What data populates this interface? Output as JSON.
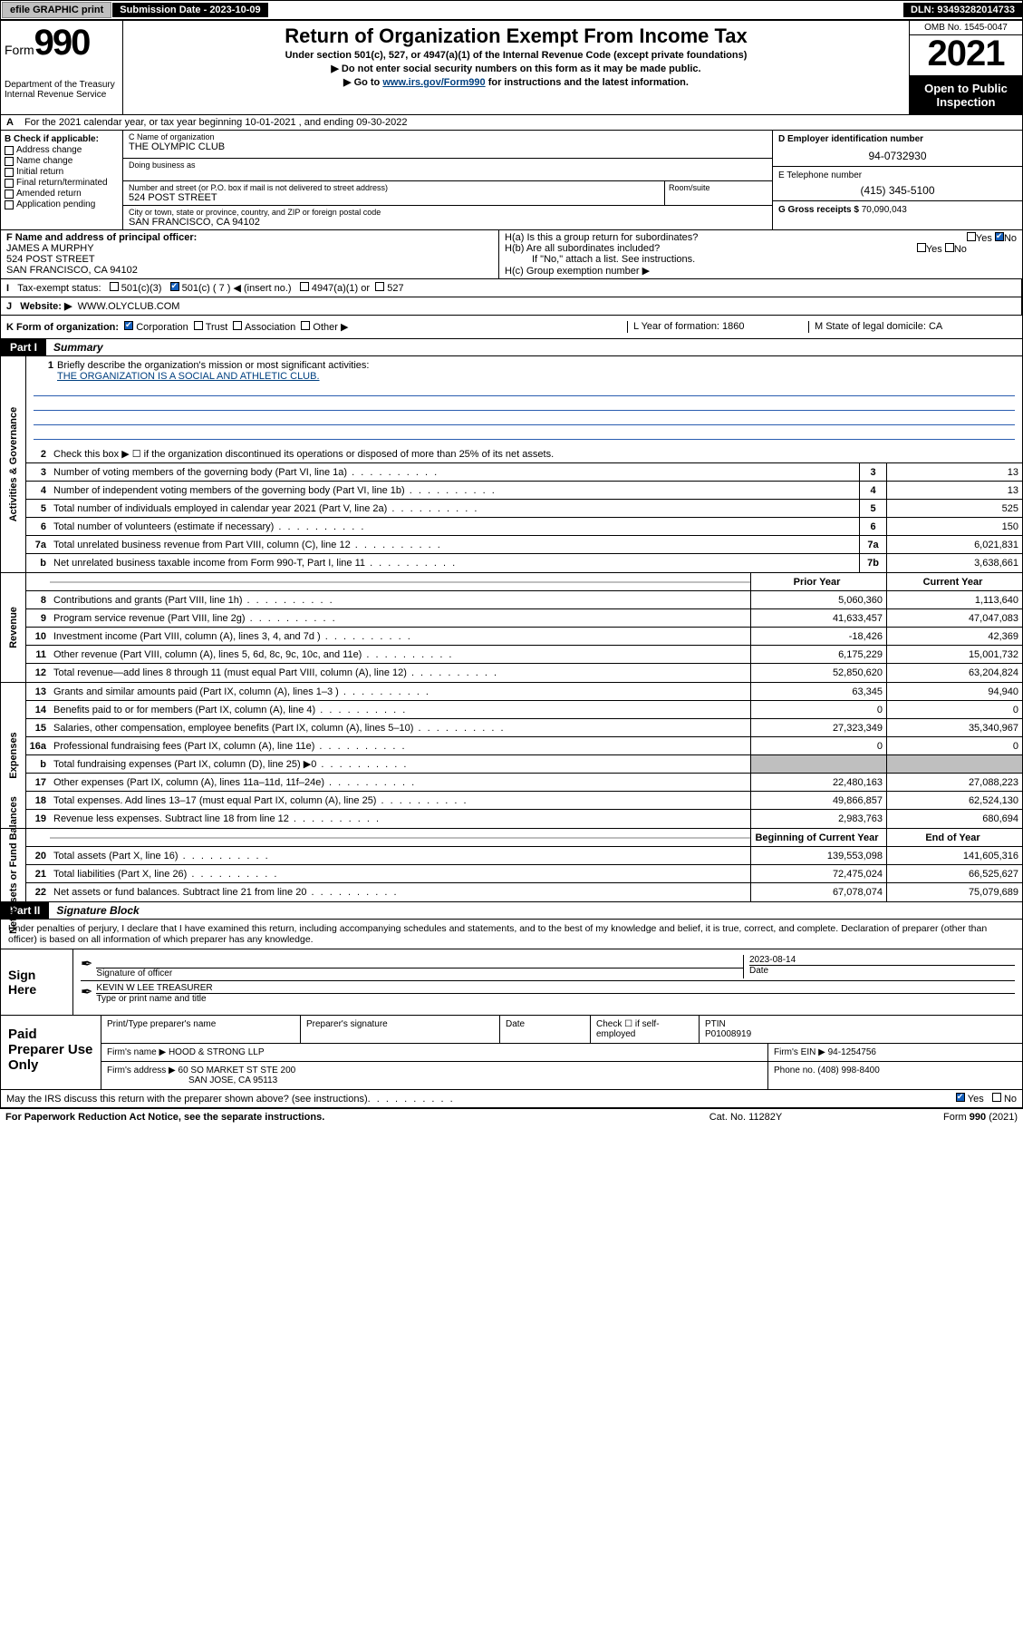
{
  "topbar": {
    "efile": "efile GRAPHIC print",
    "submission": "Submission Date - 2023-10-09",
    "dln": "DLN: 93493282014733"
  },
  "header": {
    "form_word": "Form",
    "form_num": "990",
    "title": "Return of Organization Exempt From Income Tax",
    "subtitle": "Under section 501(c), 527, or 4947(a)(1) of the Internal Revenue Code (except private foundations)",
    "warn": "▶ Do not enter social security numbers on this form as it may be made public.",
    "goto_pre": "▶ Go to ",
    "goto_link": "www.irs.gov/Form990",
    "goto_post": " for instructions and the latest information.",
    "dept": "Department of the Treasury",
    "irs": "Internal Revenue Service",
    "omb": "OMB No. 1545-0047",
    "year": "2021",
    "open": "Open to Public Inspection"
  },
  "row_a": "For the 2021 calendar year, or tax year beginning 10-01-2021   , and ending 09-30-2022",
  "col_b": {
    "title": "B Check if applicable:",
    "opts": [
      "Address change",
      "Name change",
      "Initial return",
      "Final return/terminated",
      "Amended return",
      "Application pending"
    ]
  },
  "col_c": {
    "name_lbl": "C Name of organization",
    "name": "THE OLYMPIC CLUB",
    "dba_lbl": "Doing business as",
    "addr_lbl": "Number and street (or P.O. box if mail is not delivered to street address)",
    "addr": "524 POST STREET",
    "room_lbl": "Room/suite",
    "city_lbl": "City or town, state or province, country, and ZIP or foreign postal code",
    "city": "SAN FRANCISCO, CA  94102"
  },
  "col_d": {
    "lbl": "D Employer identification number",
    "val": "94-0732930"
  },
  "col_e": {
    "lbl": "E Telephone number",
    "val": "(415) 345-5100"
  },
  "col_g": {
    "lbl": "G Gross receipts $",
    "val": "70,090,043"
  },
  "col_f": {
    "lbl": "F Name and address of principal officer:",
    "name": "JAMES A MURPHY",
    "street": "524 POST STREET",
    "city": "SAN FRANCISCO, CA  94102"
  },
  "col_h": {
    "a": "H(a)  Is this a group return for subordinates?",
    "b": "H(b)  Are all subordinates included?",
    "b_note": "If \"No,\" attach a list. See instructions.",
    "c": "H(c)  Group exemption number ▶"
  },
  "row_i": {
    "lbl": "Tax-exempt status:",
    "o1": "501(c)(3)",
    "o2": "501(c) ( 7 ) ◀ (insert no.)",
    "o3": "4947(a)(1) or",
    "o4": "527"
  },
  "row_j": {
    "lbl": "Website: ▶",
    "val": "WWW.OLYCLUB.COM"
  },
  "row_k": {
    "lbl": "K Form of organization:",
    "opts": [
      "Corporation",
      "Trust",
      "Association",
      "Other ▶"
    ],
    "l": "L Year of formation: 1860",
    "m": "M State of legal domicile: CA"
  },
  "part1": {
    "tag": "Part I",
    "title": "Summary"
  },
  "mission": {
    "num": "1",
    "lbl": "Briefly describe the organization's mission or most significant activities:",
    "text": "THE ORGANIZATION IS A SOCIAL AND ATHLETIC CLUB."
  },
  "lines_gov": [
    {
      "n": "2",
      "t": "Check this box ▶ ☐  if the organization discontinued its operations or disposed of more than 25% of its net assets."
    },
    {
      "n": "3",
      "t": "Number of voting members of the governing body (Part VI, line 1a)",
      "b": "3",
      "v": "13"
    },
    {
      "n": "4",
      "t": "Number of independent voting members of the governing body (Part VI, line 1b)",
      "b": "4",
      "v": "13"
    },
    {
      "n": "5",
      "t": "Total number of individuals employed in calendar year 2021 (Part V, line 2a)",
      "b": "5",
      "v": "525"
    },
    {
      "n": "6",
      "t": "Total number of volunteers (estimate if necessary)",
      "b": "6",
      "v": "150"
    },
    {
      "n": "7a",
      "t": "Total unrelated business revenue from Part VIII, column (C), line 12",
      "b": "7a",
      "v": "6,021,831"
    },
    {
      "n": "b",
      "t": "Net unrelated business taxable income from Form 990-T, Part I, line 11",
      "b": "7b",
      "v": "3,638,661"
    }
  ],
  "rev_hdr": {
    "py": "Prior Year",
    "cy": "Current Year"
  },
  "lines_rev": [
    {
      "n": "8",
      "t": "Contributions and grants (Part VIII, line 1h)",
      "py": "5,060,360",
      "cy": "1,113,640"
    },
    {
      "n": "9",
      "t": "Program service revenue (Part VIII, line 2g)",
      "py": "41,633,457",
      "cy": "47,047,083"
    },
    {
      "n": "10",
      "t": "Investment income (Part VIII, column (A), lines 3, 4, and 7d )",
      "py": "-18,426",
      "cy": "42,369"
    },
    {
      "n": "11",
      "t": "Other revenue (Part VIII, column (A), lines 5, 6d, 8c, 9c, 10c, and 11e)",
      "py": "6,175,229",
      "cy": "15,001,732"
    },
    {
      "n": "12",
      "t": "Total revenue—add lines 8 through 11 (must equal Part VIII, column (A), line 12)",
      "py": "52,850,620",
      "cy": "63,204,824"
    }
  ],
  "lines_exp": [
    {
      "n": "13",
      "t": "Grants and similar amounts paid (Part IX, column (A), lines 1–3 )",
      "py": "63,345",
      "cy": "94,940"
    },
    {
      "n": "14",
      "t": "Benefits paid to or for members (Part IX, column (A), line 4)",
      "py": "0",
      "cy": "0"
    },
    {
      "n": "15",
      "t": "Salaries, other compensation, employee benefits (Part IX, column (A), lines 5–10)",
      "py": "27,323,349",
      "cy": "35,340,967"
    },
    {
      "n": "16a",
      "t": "Professional fundraising fees (Part IX, column (A), line 11e)",
      "py": "0",
      "cy": "0"
    },
    {
      "n": "b",
      "t": "Total fundraising expenses (Part IX, column (D), line 25) ▶0",
      "py": "",
      "cy": "",
      "shade": true
    },
    {
      "n": "17",
      "t": "Other expenses (Part IX, column (A), lines 11a–11d, 11f–24e)",
      "py": "22,480,163",
      "cy": "27,088,223"
    },
    {
      "n": "18",
      "t": "Total expenses. Add lines 13–17 (must equal Part IX, column (A), line 25)",
      "py": "49,866,857",
      "cy": "62,524,130"
    },
    {
      "n": "19",
      "t": "Revenue less expenses. Subtract line 18 from line 12",
      "py": "2,983,763",
      "cy": "680,694"
    }
  ],
  "na_hdr": {
    "py": "Beginning of Current Year",
    "cy": "End of Year"
  },
  "lines_na": [
    {
      "n": "20",
      "t": "Total assets (Part X, line 16)",
      "py": "139,553,098",
      "cy": "141,605,316"
    },
    {
      "n": "21",
      "t": "Total liabilities (Part X, line 26)",
      "py": "72,475,024",
      "cy": "66,525,627"
    },
    {
      "n": "22",
      "t": "Net assets or fund balances. Subtract line 21 from line 20",
      "py": "67,078,074",
      "cy": "75,079,689"
    }
  ],
  "vtabs": {
    "gov": "Activities & Governance",
    "rev": "Revenue",
    "exp": "Expenses",
    "na": "Net Assets or Fund Balances"
  },
  "part2": {
    "tag": "Part II",
    "title": "Signature Block"
  },
  "sig_intro": "Under penalties of perjury, I declare that I have examined this return, including accompanying schedules and statements, and to the best of my knowledge and belief, it is true, correct, and complete. Declaration of preparer (other than officer) is based on all information of which preparer has any knowledge.",
  "sign": {
    "here": "Sign Here",
    "sig_lbl": "Signature of officer",
    "date_lbl": "Date",
    "date": "2023-08-14",
    "name": "KEVIN W LEE TREASURER",
    "name_lbl": "Type or print name and title"
  },
  "prep": {
    "title": "Paid Preparer Use Only",
    "h1": "Print/Type preparer's name",
    "h2": "Preparer's signature",
    "h3": "Date",
    "h4_pre": "Check ☐ if self-employed",
    "h5": "PTIN",
    "ptin": "P01008919",
    "firm_lbl": "Firm's name    ▶",
    "firm": "HOOD & STRONG LLP",
    "ein_lbl": "Firm's EIN ▶",
    "ein": "94-1254756",
    "addr_lbl": "Firm's address ▶",
    "addr1": "60 SO MARKET ST STE 200",
    "addr2": "SAN JOSE, CA  95113",
    "phone_lbl": "Phone no.",
    "phone": "(408) 998-8400"
  },
  "discuss": "May the IRS discuss this return with the preparer shown above? (see instructions)",
  "footer": {
    "pra": "For Paperwork Reduction Act Notice, see the separate instructions.",
    "cat": "Cat. No. 11282Y",
    "form": "Form 990 (2021)"
  },
  "yn": {
    "yes": "Yes",
    "no": "No"
  }
}
